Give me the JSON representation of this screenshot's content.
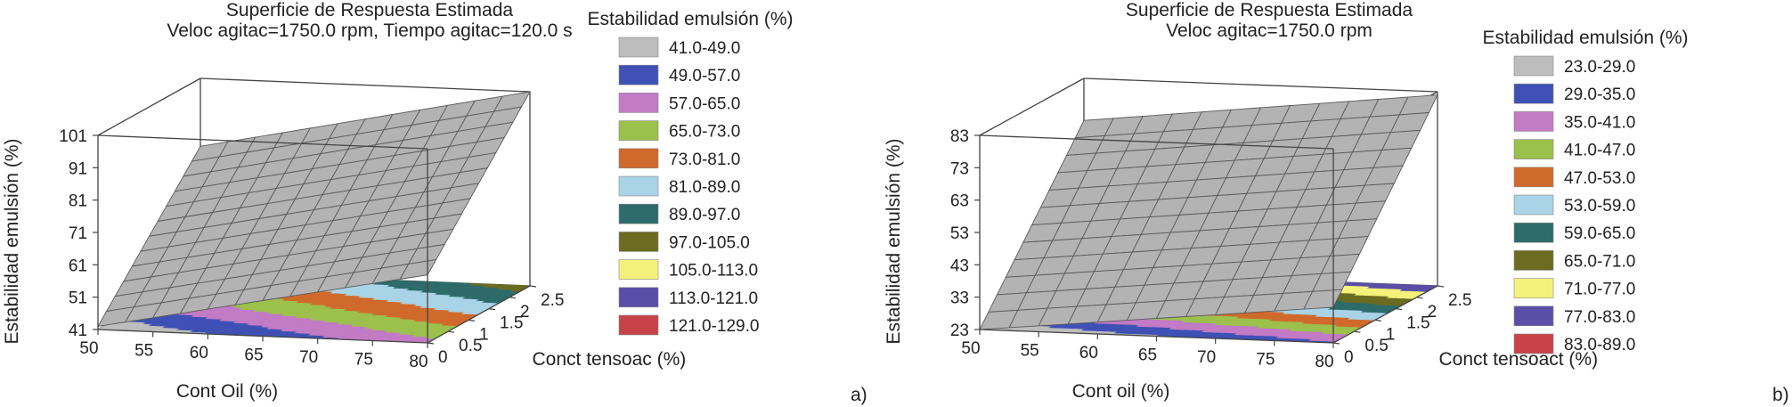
{
  "chart_data": [
    {
      "type": "surface3d",
      "panel_label": "a)",
      "title": "Superficie de Respuesta Estimada",
      "subtitle": "Veloc agitac=1750.0 rpm, Tiempo agitac=120.0 s",
      "xlabel": "Cont Oil (%)",
      "ylabel": "Conct tensoac (%)",
      "zlabel": "Estabilidad emulsión (%)",
      "x_ticks": [
        "50",
        "55",
        "60",
        "65",
        "70",
        "75",
        "80"
      ],
      "y_ticks": [
        "0",
        "0.5",
        "1",
        "1.5",
        "2",
        "2.5"
      ],
      "z_ticks": [
        "41",
        "51",
        "61",
        "71",
        "81",
        "91",
        "101"
      ],
      "xlim": [
        50,
        80
      ],
      "ylim": [
        0,
        2.5
      ],
      "zlim": [
        41,
        101
      ],
      "surface_corners": {
        "x50_y0": 42,
        "x80_y0": 62,
        "x50_y2.5": 80,
        "x80_y2.5": 101
      },
      "legend_title": "Estabilidad emulsión (%)",
      "legend": [
        {
          "label": "41.0-49.0",
          "color": "#bdbdbd"
        },
        {
          "label": "49.0-57.0",
          "color": "#3f51b5"
        },
        {
          "label": "57.0-65.0",
          "color": "#c27bc4"
        },
        {
          "label": "65.0-73.0",
          "color": "#9cc04c"
        },
        {
          "label": "73.0-81.0",
          "color": "#d06a2c"
        },
        {
          "label": "81.0-89.0",
          "color": "#a9d3e6"
        },
        {
          "label": "89.0-97.0",
          "color": "#2e6b6b"
        },
        {
          "label": "97.0-105.0",
          "color": "#6b6b22"
        },
        {
          "label": "105.0-113.0",
          "color": "#f4f27a"
        },
        {
          "label": "113.0-121.0",
          "color": "#5a4ea8"
        },
        {
          "label": "121.0-129.0",
          "color": "#c8424a"
        }
      ]
    },
    {
      "type": "surface3d",
      "panel_label": "b)",
      "title": "Superficie de Respuesta Estimada",
      "subtitle": "Veloc agitac=1750.0 rpm",
      "xlabel": "Cont oil (%)",
      "ylabel": "Conct tensoact (%)",
      "zlabel": "Estabilidad emulsión (%)",
      "x_ticks": [
        "50",
        "55",
        "60",
        "65",
        "70",
        "75",
        "80"
      ],
      "y_ticks": [
        "0",
        "0.5",
        "1",
        "1.5",
        "2",
        "2.5"
      ],
      "z_ticks": [
        "23",
        "33",
        "43",
        "53",
        "63",
        "73",
        "83"
      ],
      "xlim": [
        50,
        80
      ],
      "ylim": [
        0,
        2.5
      ],
      "zlim": [
        23,
        83
      ],
      "surface_corners": {
        "x50_y0": 23,
        "x80_y0": 34,
        "x50_y2.5": 70,
        "x80_y2.5": 82
      },
      "legend_title": "Estabilidad emulsión (%)",
      "legend": [
        {
          "label": "23.0-29.0",
          "color": "#bdbdbd"
        },
        {
          "label": "29.0-35.0",
          "color": "#3f51b5"
        },
        {
          "label": "35.0-41.0",
          "color": "#c27bc4"
        },
        {
          "label": "41.0-47.0",
          "color": "#9cc04c"
        },
        {
          "label": "47.0-53.0",
          "color": "#d06a2c"
        },
        {
          "label": "53.0-59.0",
          "color": "#a9d3e6"
        },
        {
          "label": "59.0-65.0",
          "color": "#2e6b6b"
        },
        {
          "label": "65.0-71.0",
          "color": "#6b6b22"
        },
        {
          "label": "71.0-77.0",
          "color": "#f4f27a"
        },
        {
          "label": "77.0-83.0",
          "color": "#5a4ea8"
        },
        {
          "label": "83.0-89.0",
          "color": "#c8424a"
        }
      ]
    }
  ]
}
